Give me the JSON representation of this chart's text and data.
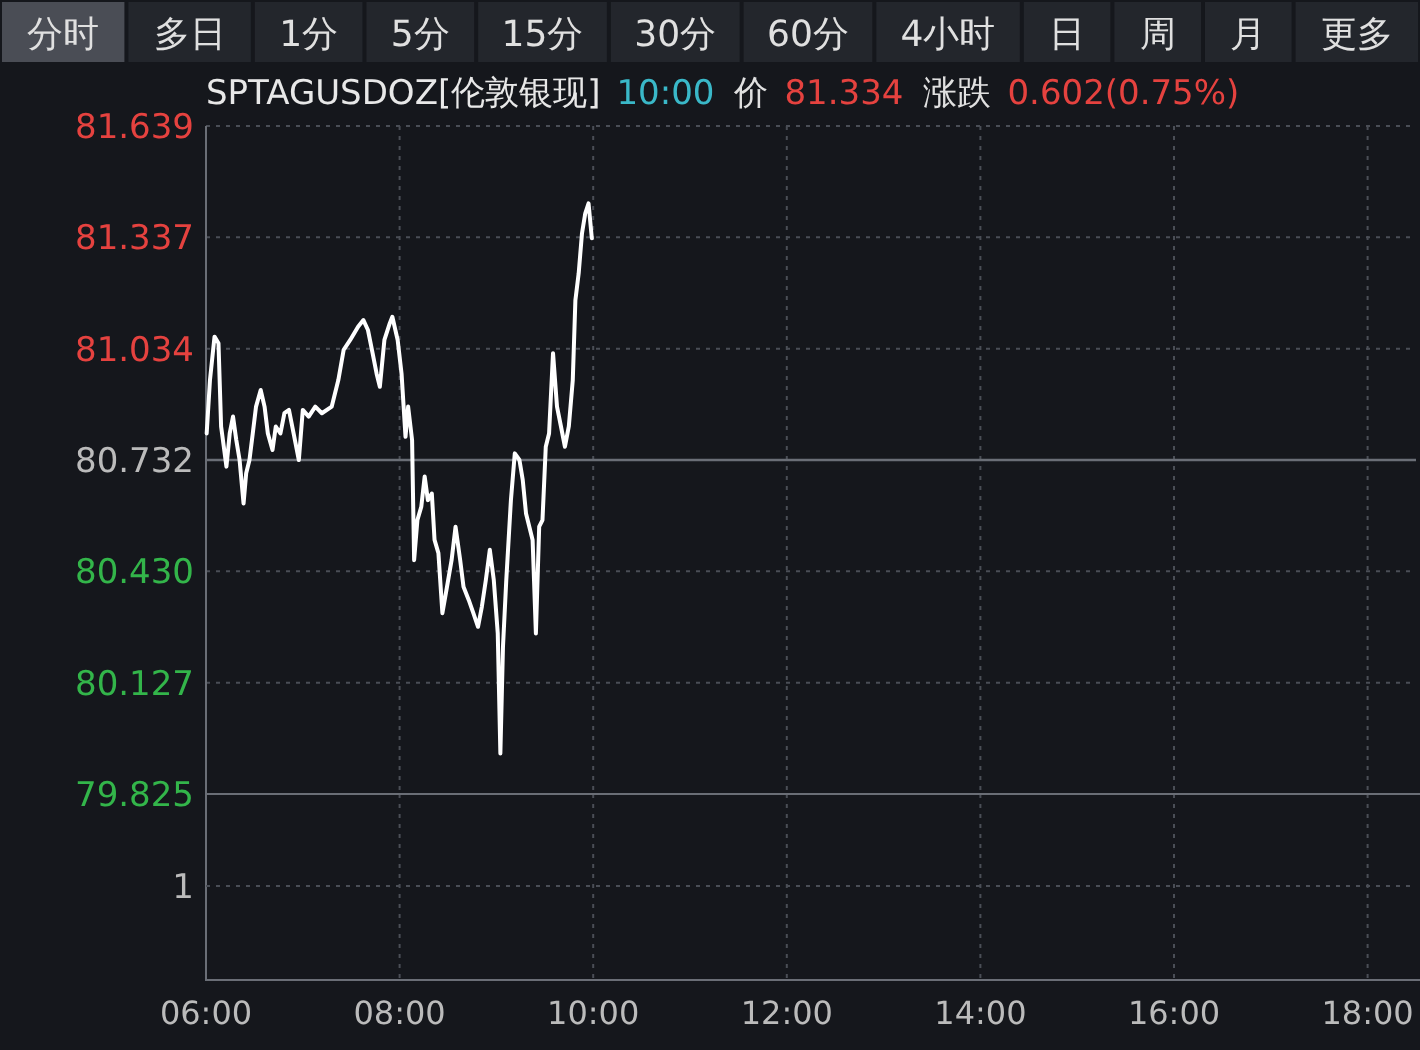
{
  "chart_data": [
    {
      "type": "other",
      "annotations": [
        "分时",
        "多日",
        "1分",
        "5分",
        "15分",
        "30分",
        "60分",
        "4小时",
        "日",
        "周",
        "月",
        "更多"
      ]
    },
    {
      "type": "line",
      "title": "SPTAGUSDOZ[伦敦银现]",
      "annotations": [
        "10:00",
        "价",
        "81.334",
        "涨跌",
        "0.602(0.75%)"
      ],
      "xlim": [
        6,
        18.5
      ],
      "xticks": [
        {
          "value": 6,
          "label": "06:00"
        },
        {
          "value": 8,
          "label": "08:00"
        },
        {
          "value": 10,
          "label": "10:00"
        },
        {
          "value": 12,
          "label": "12:00"
        },
        {
          "value": 14,
          "label": "14:00"
        },
        {
          "value": 16,
          "label": "16:00"
        },
        {
          "value": 18,
          "label": "18:00"
        }
      ],
      "ylim": [
        79.825,
        81.639
      ],
      "yticks": [
        79.825,
        80.127,
        {
          "value": 80.43,
          "label": "80.430"
        },
        80.732,
        81.034,
        81.337,
        81.639
      ],
      "grid": true,
      "ref_lines": [
        {
          "axis": "y",
          "value": 80.732
        }
      ],
      "series": [
        {
          "color": "#ffffff",
          "x": [
            6.007,
            6.041,
            6.088,
            6.129,
            6.156,
            6.184,
            6.211,
            6.245,
            6.279,
            6.313,
            6.347,
            6.388,
            6.415,
            6.449,
            6.483,
            6.517,
            6.565,
            6.605,
            6.639,
            6.687,
            6.721,
            6.769,
            6.81,
            6.857,
            6.905,
            6.959,
            7.0,
            7.061,
            7.129,
            7.197,
            7.299,
            7.367,
            7.422,
            7.49,
            7.571,
            7.626,
            7.673,
            7.721,
            7.762,
            7.796,
            7.843,
            7.898,
            7.925,
            7.98,
            8.02,
            8.061,
            8.088,
            8.129,
            8.15,
            8.184,
            8.224,
            8.259,
            8.292,
            8.333,
            8.361,
            8.401,
            8.442,
            8.49,
            8.537,
            8.578,
            8.626,
            8.66,
            8.714,
            8.762,
            8.81,
            8.85,
            8.891,
            8.932,
            8.973,
            9.014,
            9.041,
            9.068,
            9.102,
            9.15,
            9.19,
            9.238,
            9.272,
            9.306,
            9.34,
            9.374,
            9.408,
            9.442,
            9.476,
            9.51,
            9.544,
            9.585,
            9.626,
            9.667,
            9.708,
            9.748,
            9.789,
            9.816,
            9.85,
            9.884,
            9.918,
            9.952,
            9.986
          ],
          "values": [
            80.804,
            80.949,
            81.067,
            81.049,
            80.823,
            80.768,
            80.714,
            80.804,
            80.85,
            80.786,
            80.732,
            80.614,
            80.696,
            80.732,
            80.804,
            80.877,
            80.922,
            80.877,
            80.804,
            80.759,
            80.823,
            80.804,
            80.859,
            80.868,
            80.804,
            80.732,
            80.868,
            80.85,
            80.877,
            80.859,
            80.877,
            80.949,
            81.031,
            81.058,
            81.094,
            81.112,
            81.085,
            81.022,
            80.967,
            80.931,
            81.058,
            81.103,
            81.121,
            81.058,
            80.967,
            80.795,
            80.877,
            80.786,
            80.46,
            80.569,
            80.605,
            80.687,
            80.623,
            80.641,
            80.515,
            80.479,
            80.316,
            80.388,
            80.46,
            80.551,
            80.46,
            80.388,
            80.352,
            80.316,
            80.279,
            80.334,
            80.406,
            80.488,
            80.406,
            80.261,
            79.935,
            80.225,
            80.406,
            80.623,
            80.75,
            80.732,
            80.678,
            80.587,
            80.551,
            80.515,
            80.261,
            80.551,
            80.569,
            80.768,
            80.804,
            81.022,
            80.877,
            80.823,
            80.768,
            80.823,
            80.949,
            81.166,
            81.239,
            81.347,
            81.402,
            81.429,
            81.334
          ]
        }
      ]
    },
    {
      "type": "other",
      "annotations": [
        "1"
      ]
    }
  ]
}
